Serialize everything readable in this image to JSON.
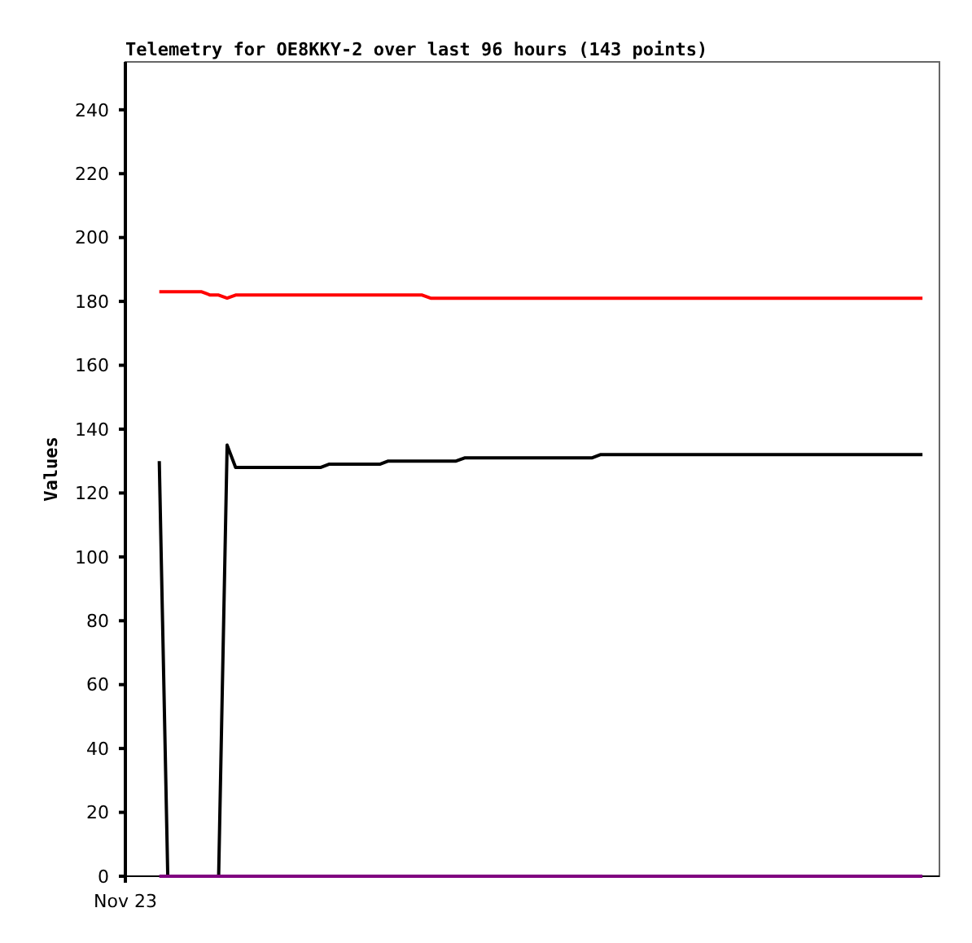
{
  "chart_data": {
    "type": "line",
    "title": "Telemetry for OE8KKY-2 over last 96 hours (143 points)",
    "ylabel": "Values",
    "categories": [
      "Nov 23",
      null,
      null,
      null,
      null,
      null,
      null,
      null,
      null,
      null,
      null,
      null,
      null,
      null,
      null,
      null,
      null,
      null,
      null,
      null,
      null,
      null,
      null,
      null,
      null,
      null,
      null,
      null,
      null,
      null,
      null,
      null,
      null,
      null,
      null,
      null,
      null,
      null,
      null,
      null,
      null,
      null,
      null,
      null,
      null,
      null,
      null,
      null,
      null,
      null,
      null,
      null,
      null,
      null,
      null,
      null,
      null,
      null,
      null,
      null,
      null,
      null,
      null,
      null,
      null,
      null,
      null,
      null,
      null,
      null,
      null,
      null,
      null,
      null,
      null,
      null,
      null,
      null,
      null,
      null,
      null,
      null,
      null,
      null,
      null,
      null,
      null,
      null,
      null,
      null,
      null,
      null,
      null,
      null,
      null,
      null,
      null
    ],
    "ylim": [
      0,
      255
    ],
    "yticks": [
      0,
      20,
      40,
      60,
      80,
      100,
      120,
      140,
      160,
      180,
      200,
      220,
      240
    ],
    "grid": false,
    "line_style": "solid",
    "series": [
      {
        "color": "#ff0000",
        "values": [
          null,
          null,
          null,
          null,
          183,
          183,
          183,
          183,
          183,
          183,
          182,
          182,
          181,
          182,
          182,
          182,
          182,
          182,
          182,
          182,
          182,
          182,
          182,
          182,
          182,
          182,
          182,
          182,
          182,
          182,
          182,
          182,
          182,
          182,
          182,
          182,
          181,
          181,
          181,
          181,
          181,
          181,
          181,
          181,
          181,
          181,
          181,
          181,
          181,
          181,
          181,
          181,
          181,
          181,
          181,
          181,
          181,
          181,
          181,
          181,
          181,
          181,
          181,
          181,
          181,
          181,
          181,
          181,
          181,
          181,
          181,
          181,
          181,
          181,
          181,
          181,
          181,
          181,
          181,
          181,
          181,
          181,
          181,
          181,
          181,
          181,
          181,
          181,
          181,
          181,
          181,
          181,
          181,
          181,
          181,
          null,
          null
        ]
      },
      {
        "color": "#000000",
        "values": [
          null,
          null,
          null,
          null,
          130,
          0,
          0,
          0,
          0,
          0,
          0,
          0,
          135,
          128,
          128,
          128,
          128,
          128,
          128,
          128,
          128,
          128,
          128,
          128,
          129,
          129,
          129,
          129,
          129,
          129,
          129,
          130,
          130,
          130,
          130,
          130,
          130,
          130,
          130,
          130,
          131,
          131,
          131,
          131,
          131,
          131,
          131,
          131,
          131,
          131,
          131,
          131,
          131,
          131,
          131,
          131,
          132,
          132,
          132,
          132,
          132,
          132,
          132,
          132,
          132,
          132,
          132,
          132,
          132,
          132,
          132,
          132,
          132,
          132,
          132,
          132,
          132,
          132,
          132,
          132,
          132,
          132,
          132,
          132,
          132,
          132,
          132,
          132,
          132,
          132,
          132,
          132,
          132,
          132,
          132,
          null,
          null
        ]
      },
      {
        "color": "#800080",
        "values": [
          null,
          null,
          null,
          null,
          0,
          0,
          0,
          0,
          0,
          0,
          0,
          0,
          0,
          0,
          0,
          0,
          0,
          0,
          0,
          0,
          0,
          0,
          0,
          0,
          0,
          0,
          0,
          0,
          0,
          0,
          0,
          0,
          0,
          0,
          0,
          0,
          0,
          0,
          0,
          0,
          0,
          0,
          0,
          0,
          0,
          0,
          0,
          0,
          0,
          0,
          0,
          0,
          0,
          0,
          0,
          0,
          0,
          0,
          0,
          0,
          0,
          0,
          0,
          0,
          0,
          0,
          0,
          0,
          0,
          0,
          0,
          0,
          0,
          0,
          0,
          0,
          0,
          0,
          0,
          0,
          0,
          0,
          0,
          0,
          0,
          0,
          0,
          0,
          0,
          0,
          0,
          0,
          0,
          0,
          0,
          null,
          null
        ]
      }
    ]
  }
}
